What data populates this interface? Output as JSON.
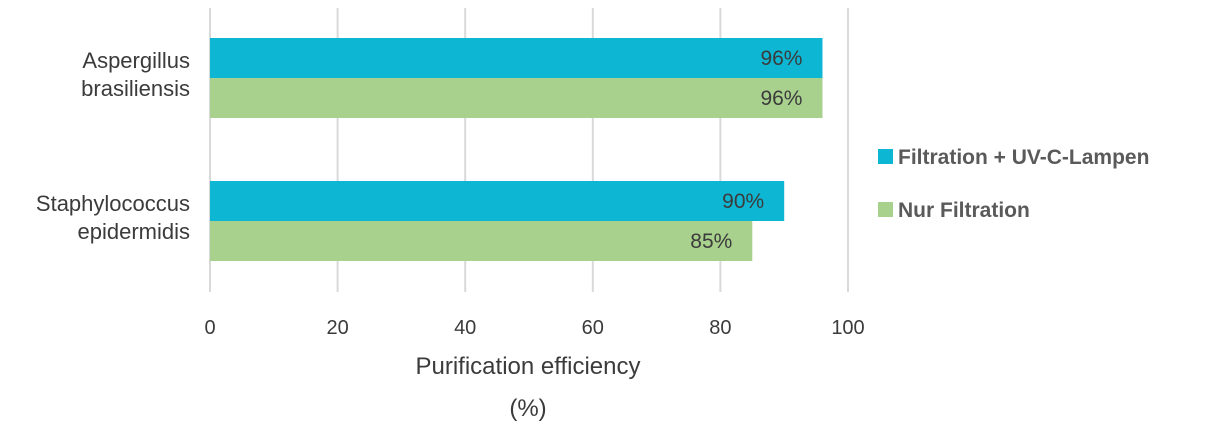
{
  "chart_data": {
    "type": "bar",
    "orientation": "horizontal",
    "categories": [
      [
        "Aspergillus",
        "brasiliensis"
      ],
      [
        "Staphylococcus",
        "epidermidis"
      ]
    ],
    "series": [
      {
        "name": "Filtration + UV-C-Lampen",
        "color": "#0db6d3",
        "values": [
          96,
          90
        ],
        "labels": [
          "96%",
          "90%"
        ]
      },
      {
        "name": "Nur Filtration",
        "color": "#a9d18e",
        "values": [
          96,
          85
        ],
        "labels": [
          "96%",
          "85%"
        ]
      }
    ],
    "xlabel": [
      "Purification efficiency",
      "(%)"
    ],
    "xlim": [
      0,
      100
    ],
    "xticks": [
      0,
      20,
      40,
      60,
      80,
      100
    ],
    "grid": "vertical",
    "legend_position": "right"
  }
}
